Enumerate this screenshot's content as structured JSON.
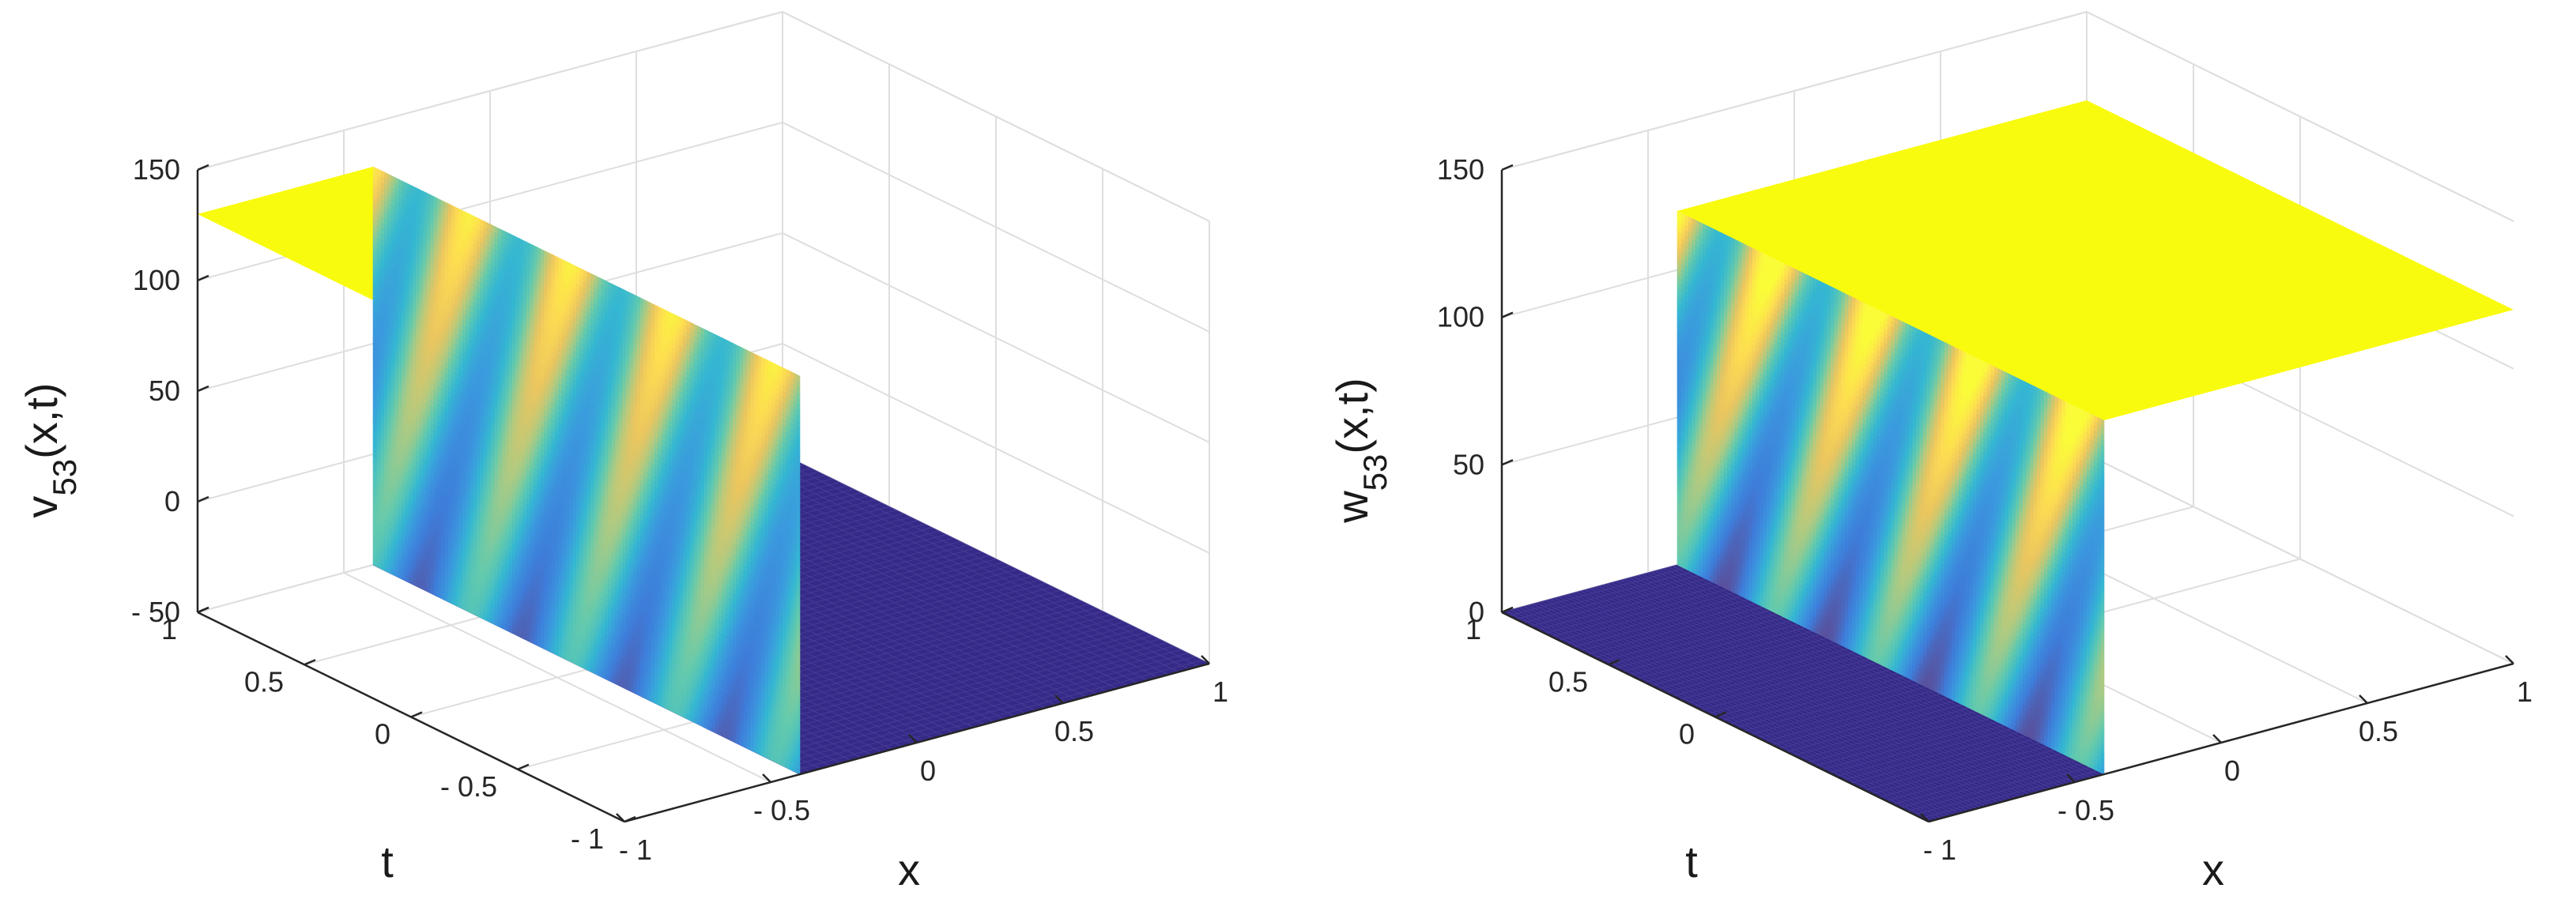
{
  "chart_data": [
    {
      "type": "surface",
      "zlabel": {
        "var": "v",
        "sub": "53",
        "args": "(x,t)"
      },
      "xlabel": "x",
      "ylabel": "t",
      "xlim": [
        -1,
        1
      ],
      "ylim": [
        -1,
        1
      ],
      "zlim": [
        -50,
        150
      ],
      "xticks": [
        "- 1",
        "- 0.5",
        "0",
        "0.5",
        "1"
      ],
      "yticks": [
        "- 1",
        "- 0.5",
        "0",
        "0.5",
        "1"
      ],
      "zticks": [
        "- 50",
        "0",
        "50",
        "100",
        "150"
      ],
      "grid": true,
      "colormap": "parula",
      "front_level": 130,
      "front_position_x": -0.4,
      "front_side": "left-high",
      "low_level": -50,
      "high_level": 130
    },
    {
      "type": "surface",
      "zlabel": {
        "var": "w",
        "sub": "53",
        "args": "(x,t)"
      },
      "xlabel": "x",
      "ylabel": "t",
      "xlim": [
        -1,
        1
      ],
      "ylim": [
        -1,
        1
      ],
      "zlim": [
        0,
        150
      ],
      "xticks": [
        "- 1",
        "- 0.5",
        "0",
        "0.5",
        "1"
      ],
      "yticks": [
        "0",
        "0.5",
        "1"
      ],
      "zticks": [
        "0",
        "50",
        "100",
        "150"
      ],
      "grid": true,
      "colormap": "parula",
      "front_position_x": -0.4,
      "front_side": "right-high",
      "low_level": 0,
      "high_level": 120
    }
  ]
}
